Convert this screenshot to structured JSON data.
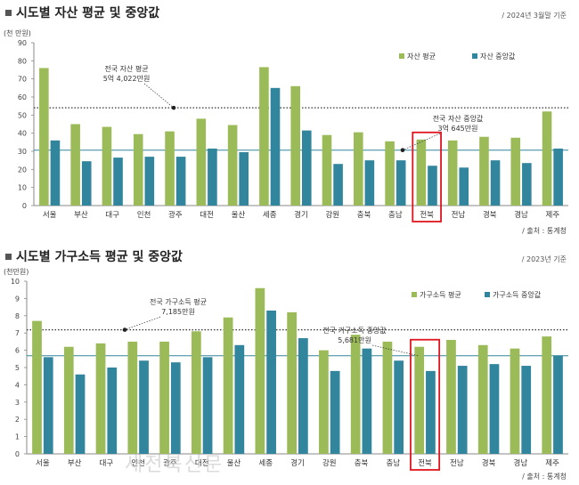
{
  "colors": {
    "avg": "#9bbb59",
    "median": "#31859c",
    "highlight": "#e0141e"
  },
  "chart_data": [
    {
      "type": "bar",
      "title": "시도별 자산 평균 및 중앙값",
      "date": "/ 2024년 3월말 기준",
      "unit": "(천 만원)",
      "source": "/ 출처 : 통계청",
      "categories": [
        "서울",
        "부산",
        "대구",
        "인천",
        "광주",
        "대전",
        "울산",
        "세종",
        "경기",
        "강원",
        "충북",
        "충남",
        "전북",
        "전남",
        "경북",
        "경남",
        "제주"
      ],
      "ylim": [
        0,
        90
      ],
      "yticks": [
        0,
        10,
        20,
        30,
        40,
        50,
        60,
        70,
        80,
        90
      ],
      "highlight_category": "전북",
      "series": [
        {
          "name": "자산 평균",
          "values": [
            76,
            45,
            43.5,
            39.5,
            41,
            48,
            44.5,
            76.5,
            66,
            39,
            40.5,
            35.5,
            36.5,
            36,
            38,
            37.5,
            52
          ]
        },
        {
          "name": "자산 중앙값",
          "values": [
            36,
            24.5,
            26.5,
            27,
            27,
            31.5,
            29.5,
            65,
            41.5,
            23,
            25,
            25,
            22,
            21,
            25,
            23.5,
            31.5
          ]
        }
      ],
      "reference_lines": [
        {
          "label": "전국 자산 평균",
          "value_text": "5억 4,022만원",
          "value": 54.022,
          "style": "dotted"
        },
        {
          "label": "전국 자산 중앙값",
          "value_text": "3억 645만원",
          "value": 30.645,
          "style": "solid"
        }
      ]
    },
    {
      "type": "bar",
      "title": "시도별 가구소득 평균 및 중앙값",
      "date": "/ 2023년 기준",
      "unit": "(천만원)",
      "source": "/ 출처 : 통계청",
      "categories": [
        "서울",
        "부산",
        "대구",
        "인천",
        "광주",
        "대전",
        "울산",
        "세종",
        "경기",
        "강원",
        "충북",
        "충남",
        "전북",
        "전남",
        "경북",
        "경남",
        "제주"
      ],
      "ylim": [
        0,
        10
      ],
      "yticks": [
        0,
        1,
        2,
        3,
        4,
        5,
        6,
        7,
        8,
        9,
        10
      ],
      "highlight_category": "전북",
      "series": [
        {
          "name": "가구소득 평균",
          "values": [
            7.7,
            6.2,
            6.4,
            6.5,
            6.5,
            7.1,
            7.9,
            9.6,
            8.2,
            6.0,
            6.9,
            6.5,
            6.2,
            6.6,
            6.3,
            6.1,
            6.8
          ]
        },
        {
          "name": "가구소득 중앙값",
          "values": [
            5.6,
            4.6,
            5.0,
            5.4,
            5.3,
            5.6,
            6.3,
            8.3,
            6.7,
            4.8,
            6.1,
            5.4,
            4.8,
            5.1,
            5.2,
            5.1,
            5.7
          ]
        }
      ],
      "reference_lines": [
        {
          "label": "전국 가구소득 평균",
          "value_text": "7,185만원",
          "value": 7.185,
          "style": "dotted"
        },
        {
          "label": "전국 가구소득 중앙값",
          "value_text": "5,681만원",
          "value": 5.681,
          "style": "solid"
        }
      ]
    }
  ],
  "watermark": "새전북신문"
}
